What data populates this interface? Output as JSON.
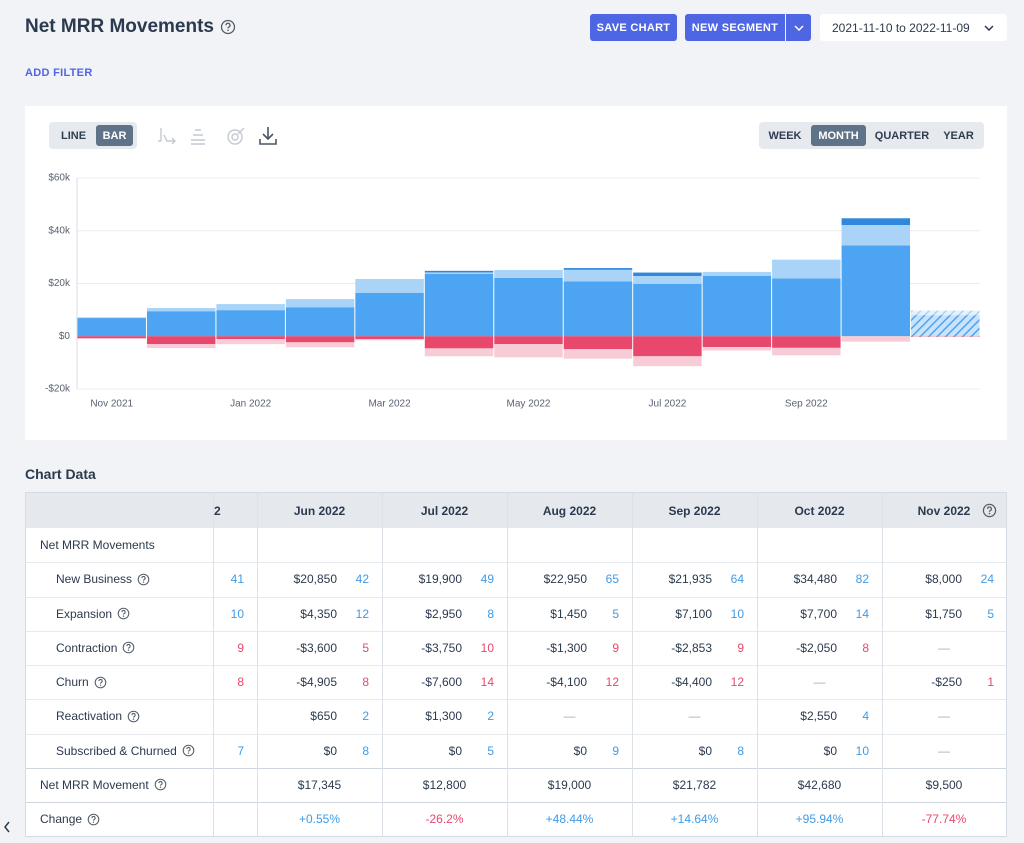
{
  "header": {
    "title": "Net MRR Movements",
    "save_button": "SAVE CHART",
    "segment_button": "NEW SEGMENT",
    "date_range": "2021-11-10 to 2022-11-09",
    "add_filter": "ADD FILTER"
  },
  "chart_controls": {
    "chart_types": [
      "LINE",
      "BAR"
    ],
    "selected_chart_type": "BAR",
    "periods": [
      "WEEK",
      "MONTH",
      "QUARTER",
      "YEAR"
    ],
    "selected_period": "MONTH"
  },
  "chart_data": {
    "type": "bar",
    "stacked": true,
    "grid": true,
    "hatched_last_bar": true,
    "categories": [
      "Nov 2021",
      null,
      "Jan 2022",
      null,
      "Mar 2022",
      null,
      "May 2022",
      null,
      "Jul 2022",
      null,
      "Sep 2022",
      null,
      null
    ],
    "series": [
      {
        "color": "#4da4f2",
        "values": [
          6900,
          9500,
          9900,
          11000,
          16400,
          23600,
          22100,
          20850,
          19900,
          22950,
          21935,
          34480,
          8000
        ]
      },
      {
        "color": "#a9d4f8",
        "values": [
          300,
          1200,
          2300,
          3100,
          5300,
          600,
          3000,
          4350,
          2950,
          1450,
          7100,
          7700,
          1750
        ]
      },
      {
        "color": "#2f88dc",
        "values": [
          null,
          null,
          null,
          null,
          null,
          600,
          null,
          650,
          1300,
          null,
          null,
          2550,
          null
        ]
      },
      {
        "color": "#e8486c",
        "values": [
          -800,
          -3000,
          -1100,
          -2300,
          -1100,
          -4600,
          -3000,
          -4905,
          -7600,
          -4100,
          -4400,
          null,
          -250
        ]
      },
      {
        "color": "#f8ccd7",
        "values": [
          null,
          -1500,
          -1900,
          -1900,
          -400,
          -3000,
          -5000,
          -3600,
          -3750,
          -1300,
          -2853,
          -2050,
          null
        ]
      }
    ],
    "ylim": [
      -20000,
      60000
    ],
    "yticks": [
      {
        "value": 60000,
        "label": "$60k"
      },
      {
        "value": 40000,
        "label": "$40k"
      },
      {
        "value": 20000,
        "label": "$20k"
      },
      {
        "value": 0,
        "label": "$0"
      },
      {
        "value": -20000,
        "label": "-$20k"
      }
    ]
  },
  "table": {
    "title": "Chart Data",
    "columns": [
      "2",
      "Jun 2022",
      "Jul 2022",
      "Aug 2022",
      "Sep 2022",
      "Oct 2022",
      "Nov 2022"
    ],
    "rows": [
      {
        "label": "Net MRR Movements",
        "level": 0,
        "help": false,
        "cells": []
      },
      {
        "label": "New Business",
        "level": 1,
        "help": true,
        "count_color": "#3f9be6",
        "cells": [
          {
            "count": 41
          },
          {
            "amount": "$20,850",
            "count": 42
          },
          {
            "amount": "$19,900",
            "count": 49
          },
          {
            "amount": "$22,950",
            "count": 65
          },
          {
            "amount": "$21,935",
            "count": 64
          },
          {
            "amount": "$34,480",
            "count": 82
          },
          {
            "amount": "$8,000",
            "count": 24
          }
        ]
      },
      {
        "label": "Expansion",
        "level": 1,
        "help": true,
        "count_color": "#3f9be6",
        "cells": [
          {
            "count": 10
          },
          {
            "amount": "$4,350",
            "count": 12
          },
          {
            "amount": "$2,950",
            "count": 8
          },
          {
            "amount": "$1,450",
            "count": 5
          },
          {
            "amount": "$7,100",
            "count": 10
          },
          {
            "amount": "$7,700",
            "count": 14
          },
          {
            "amount": "$1,750",
            "count": 5
          }
        ]
      },
      {
        "label": "Contraction",
        "level": 1,
        "help": true,
        "count_color": "#e8486c",
        "cells": [
          {
            "count": 9
          },
          {
            "amount": "-$3,600",
            "count": 5
          },
          {
            "amount": "-$3,750",
            "count": 10
          },
          {
            "amount": "-$1,300",
            "count": 9
          },
          {
            "amount": "-$2,853",
            "count": 9
          },
          {
            "amount": "-$2,050",
            "count": 8
          },
          {
            "amount": "—",
            "color": "#a6aeb8"
          }
        ]
      },
      {
        "label": "Churn",
        "level": 1,
        "help": true,
        "count_color": "#e8486c",
        "cells": [
          {
            "count": 8
          },
          {
            "amount": "-$4,905",
            "count": 8
          },
          {
            "amount": "-$7,600",
            "count": 14
          },
          {
            "amount": "-$4,100",
            "count": 12
          },
          {
            "amount": "-$4,400",
            "count": 12
          },
          {
            "amount": "—",
            "color": "#a6aeb8"
          },
          {
            "amount": "-$250",
            "count": 1
          }
        ]
      },
      {
        "label": "Reactivation",
        "level": 1,
        "help": true,
        "count_color": "#3f9be6",
        "cells": [
          {},
          {
            "amount": "$650",
            "count": 2
          },
          {
            "amount": "$1,300",
            "count": 2
          },
          {
            "amount": "—",
            "color": "#a6aeb8"
          },
          {
            "amount": "—",
            "color": "#a6aeb8"
          },
          {
            "amount": "$2,550",
            "count": 4
          },
          {
            "amount": "—",
            "color": "#a6aeb8"
          }
        ]
      },
      {
        "label": "Subscribed & Churned",
        "level": 1,
        "help": true,
        "count_color": "#3f9be6",
        "cells": [
          {
            "count": 7
          },
          {
            "amount": "$0",
            "count": 8
          },
          {
            "amount": "$0",
            "count": 5
          },
          {
            "amount": "$0",
            "count": 9
          },
          {
            "amount": "$0",
            "count": 8
          },
          {
            "amount": "$0",
            "count": 10
          },
          {
            "amount": "—",
            "color": "#a6aeb8"
          }
        ]
      },
      {
        "label": "Net MRR Movement",
        "level": 0,
        "help": true,
        "cells": [
          {},
          {
            "amount": "$17,345",
            "color": "#2b3a4e"
          },
          {
            "amount": "$12,800",
            "color": "#2b3a4e"
          },
          {
            "amount": "$19,000",
            "color": "#2b3a4e"
          },
          {
            "amount": "$21,782",
            "color": "#2b3a4e"
          },
          {
            "amount": "$42,680",
            "color": "#2b3a4e"
          },
          {
            "amount": "$9,500",
            "color": "#2b3a4e"
          }
        ]
      },
      {
        "label": "Change",
        "level": 0,
        "help": true,
        "cells": [
          {},
          {
            "amount": "+0.55%",
            "color": "#3f9be6"
          },
          {
            "amount": "-26.2%",
            "color": "#e8486c"
          },
          {
            "amount": "+48.44%",
            "color": "#3f9be6"
          },
          {
            "amount": "+14.64%",
            "color": "#3f9be6"
          },
          {
            "amount": "+95.94%",
            "color": "#3f9be6"
          },
          {
            "amount": "-77.74%",
            "color": "#e8486c"
          }
        ]
      }
    ]
  }
}
